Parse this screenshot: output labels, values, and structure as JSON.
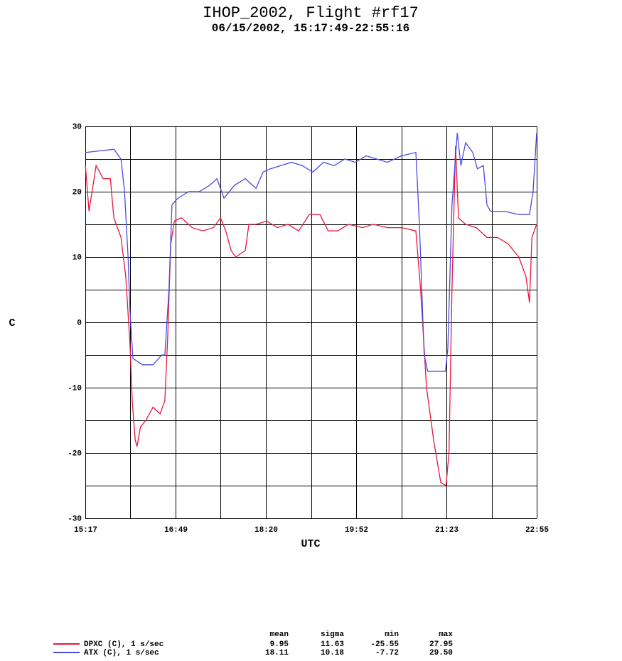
{
  "chart_data": {
    "type": "line",
    "title": "IHOP_2002, Flight #rf17",
    "subtitle": "06/15/2002, 15:17:49-22:55:16",
    "x_label": "UTC",
    "y_label": "C",
    "xlim": [
      15.297,
      22.921
    ],
    "ylim": [
      -30,
      30
    ],
    "xticks": [
      {
        "value": 15.297,
        "label": "15:17"
      },
      {
        "value": 16.822,
        "label": "16:49"
      },
      {
        "value": 18.347,
        "label": "18:20"
      },
      {
        "value": 19.871,
        "label": "19:52"
      },
      {
        "value": 21.396,
        "label": "21:23"
      },
      {
        "value": 22.921,
        "label": "22:55"
      }
    ],
    "xgrid_minor": [
      16.059,
      17.584,
      19.109,
      20.634,
      22.159
    ],
    "yticks": [
      -30,
      -20,
      -10,
      0,
      10,
      20,
      30
    ],
    "ygrid_minor": [
      -25,
      -15,
      -5,
      5,
      15,
      25
    ],
    "grid": true,
    "stats_columns": [
      "mean",
      "sigma",
      "min",
      "max"
    ],
    "series": [
      {
        "name": "DPXC (C), 1 s/sec",
        "color": "#e8173c",
        "stats": [
          "9.95",
          "11.63",
          "-25.55",
          "27.95"
        ],
        "x": [
          15.3,
          15.36,
          15.48,
          15.6,
          15.72,
          15.78,
          15.9,
          15.98,
          16.05,
          16.09,
          16.14,
          16.17,
          16.23,
          16.32,
          16.44,
          16.56,
          16.64,
          16.69,
          16.74,
          16.8,
          16.92,
          17.1,
          17.28,
          17.46,
          17.58,
          17.67,
          17.76,
          17.84,
          18.0,
          18.06,
          18.18,
          18.36,
          18.54,
          18.72,
          18.9,
          19.08,
          19.26,
          19.4,
          19.56,
          19.74,
          19.98,
          20.16,
          20.4,
          20.64,
          20.88,
          20.96,
          21.06,
          21.18,
          21.3,
          21.39,
          21.44,
          21.49,
          21.55,
          21.6,
          21.72,
          21.9,
          22.08,
          22.26,
          22.44,
          22.62,
          22.74,
          22.8,
          22.84,
          22.92
        ],
        "values": [
          24,
          17,
          24,
          22,
          22,
          16,
          13,
          7,
          -3,
          -12,
          -18,
          -19,
          -16,
          -15,
          -13,
          -14,
          -12,
          -2,
          12,
          15.5,
          16,
          14.5,
          14,
          14.5,
          16,
          14,
          11,
          10,
          11,
          15,
          15,
          15.5,
          14.5,
          15,
          14,
          16.5,
          16.5,
          14,
          14,
          15,
          14.5,
          15,
          14.5,
          14.5,
          14,
          5,
          -10,
          -18,
          -24.5,
          -25,
          -20,
          5,
          27,
          16,
          15,
          14.5,
          13,
          13,
          12,
          10,
          7,
          3,
          13,
          15
        ]
      },
      {
        "name": "ATX (C), 1 s/sec",
        "color": "#4a4ae8",
        "stats": [
          "18.11",
          "10.18",
          "-7.72",
          "29.50"
        ],
        "x": [
          15.3,
          15.78,
          15.9,
          15.96,
          16.02,
          16.05,
          16.1,
          16.26,
          16.44,
          16.59,
          16.64,
          16.71,
          16.76,
          16.86,
          17.04,
          17.22,
          17.4,
          17.52,
          17.64,
          17.82,
          18.0,
          18.18,
          18.3,
          18.42,
          18.6,
          18.78,
          18.96,
          19.14,
          19.32,
          19.5,
          19.68,
          19.86,
          20.04,
          20.22,
          20.4,
          20.64,
          20.88,
          20.94,
          21.02,
          21.08,
          21.38,
          21.42,
          21.49,
          21.58,
          21.64,
          21.72,
          21.84,
          21.92,
          22.02,
          22.08,
          22.14,
          22.38,
          22.62,
          22.8,
          22.86,
          22.92
        ],
        "values": [
          26,
          26.5,
          25,
          20,
          10,
          2,
          -5.5,
          -6.5,
          -6.5,
          -5,
          -5,
          5,
          18,
          19,
          20,
          20,
          21,
          22,
          19,
          21,
          22,
          20.5,
          23,
          23.5,
          24,
          24.5,
          24,
          23,
          24.5,
          24,
          25,
          24.5,
          25.5,
          25,
          24.5,
          25.5,
          26,
          15,
          -5,
          -7.5,
          -7.5,
          -4,
          18,
          29,
          24,
          27.5,
          26,
          23.5,
          24,
          18,
          17,
          17,
          16.5,
          16.5,
          20,
          29
        ]
      }
    ]
  }
}
